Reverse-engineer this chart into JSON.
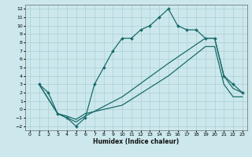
{
  "xlabel": "Humidex (Indice chaleur)",
  "bg_color": "#cce8ec",
  "grid_color": "#aacfd6",
  "line_color": "#1a6b6b",
  "xlim": [
    -0.5,
    23.5
  ],
  "ylim": [
    -2.5,
    12.5
  ],
  "xticks": [
    0,
    1,
    2,
    3,
    4,
    5,
    6,
    7,
    8,
    9,
    10,
    11,
    12,
    13,
    14,
    15,
    16,
    17,
    18,
    19,
    20,
    21,
    22,
    23
  ],
  "yticks": [
    -2,
    -1,
    0,
    1,
    2,
    3,
    4,
    5,
    6,
    7,
    8,
    9,
    10,
    11,
    12
  ],
  "lines": [
    {
      "x": [
        1,
        2,
        3,
        4,
        5,
        6,
        7,
        8,
        9,
        10,
        11,
        12,
        13,
        14,
        15,
        16,
        17,
        18,
        19,
        20,
        21,
        22,
        23
      ],
      "y": [
        3,
        2,
        -0.5,
        -1,
        -2,
        -1,
        3,
        5,
        7,
        8.5,
        8.5,
        9.5,
        10,
        11,
        12,
        10,
        9.5,
        9.5,
        8.5,
        8.5,
        4,
        3,
        2
      ],
      "marker": "D",
      "markersize": 2.0,
      "linewidth": 0.9
    },
    {
      "x": [
        1,
        3,
        4,
        5,
        6,
        10,
        15,
        19,
        20,
        21,
        22,
        23
      ],
      "y": [
        3,
        -0.5,
        -1,
        -1.5,
        -0.8,
        1.5,
        5.5,
        8.5,
        8.5,
        4,
        2.5,
        2
      ],
      "marker": null,
      "linewidth": 0.9
    },
    {
      "x": [
        1,
        3,
        4,
        5,
        6,
        10,
        15,
        19,
        20,
        21,
        22,
        23
      ],
      "y": [
        3,
        -0.5,
        -0.8,
        -1.2,
        -0.5,
        0.5,
        4,
        7.5,
        7.5,
        3,
        1.5,
        1.5
      ],
      "marker": null,
      "linewidth": 0.9
    }
  ]
}
